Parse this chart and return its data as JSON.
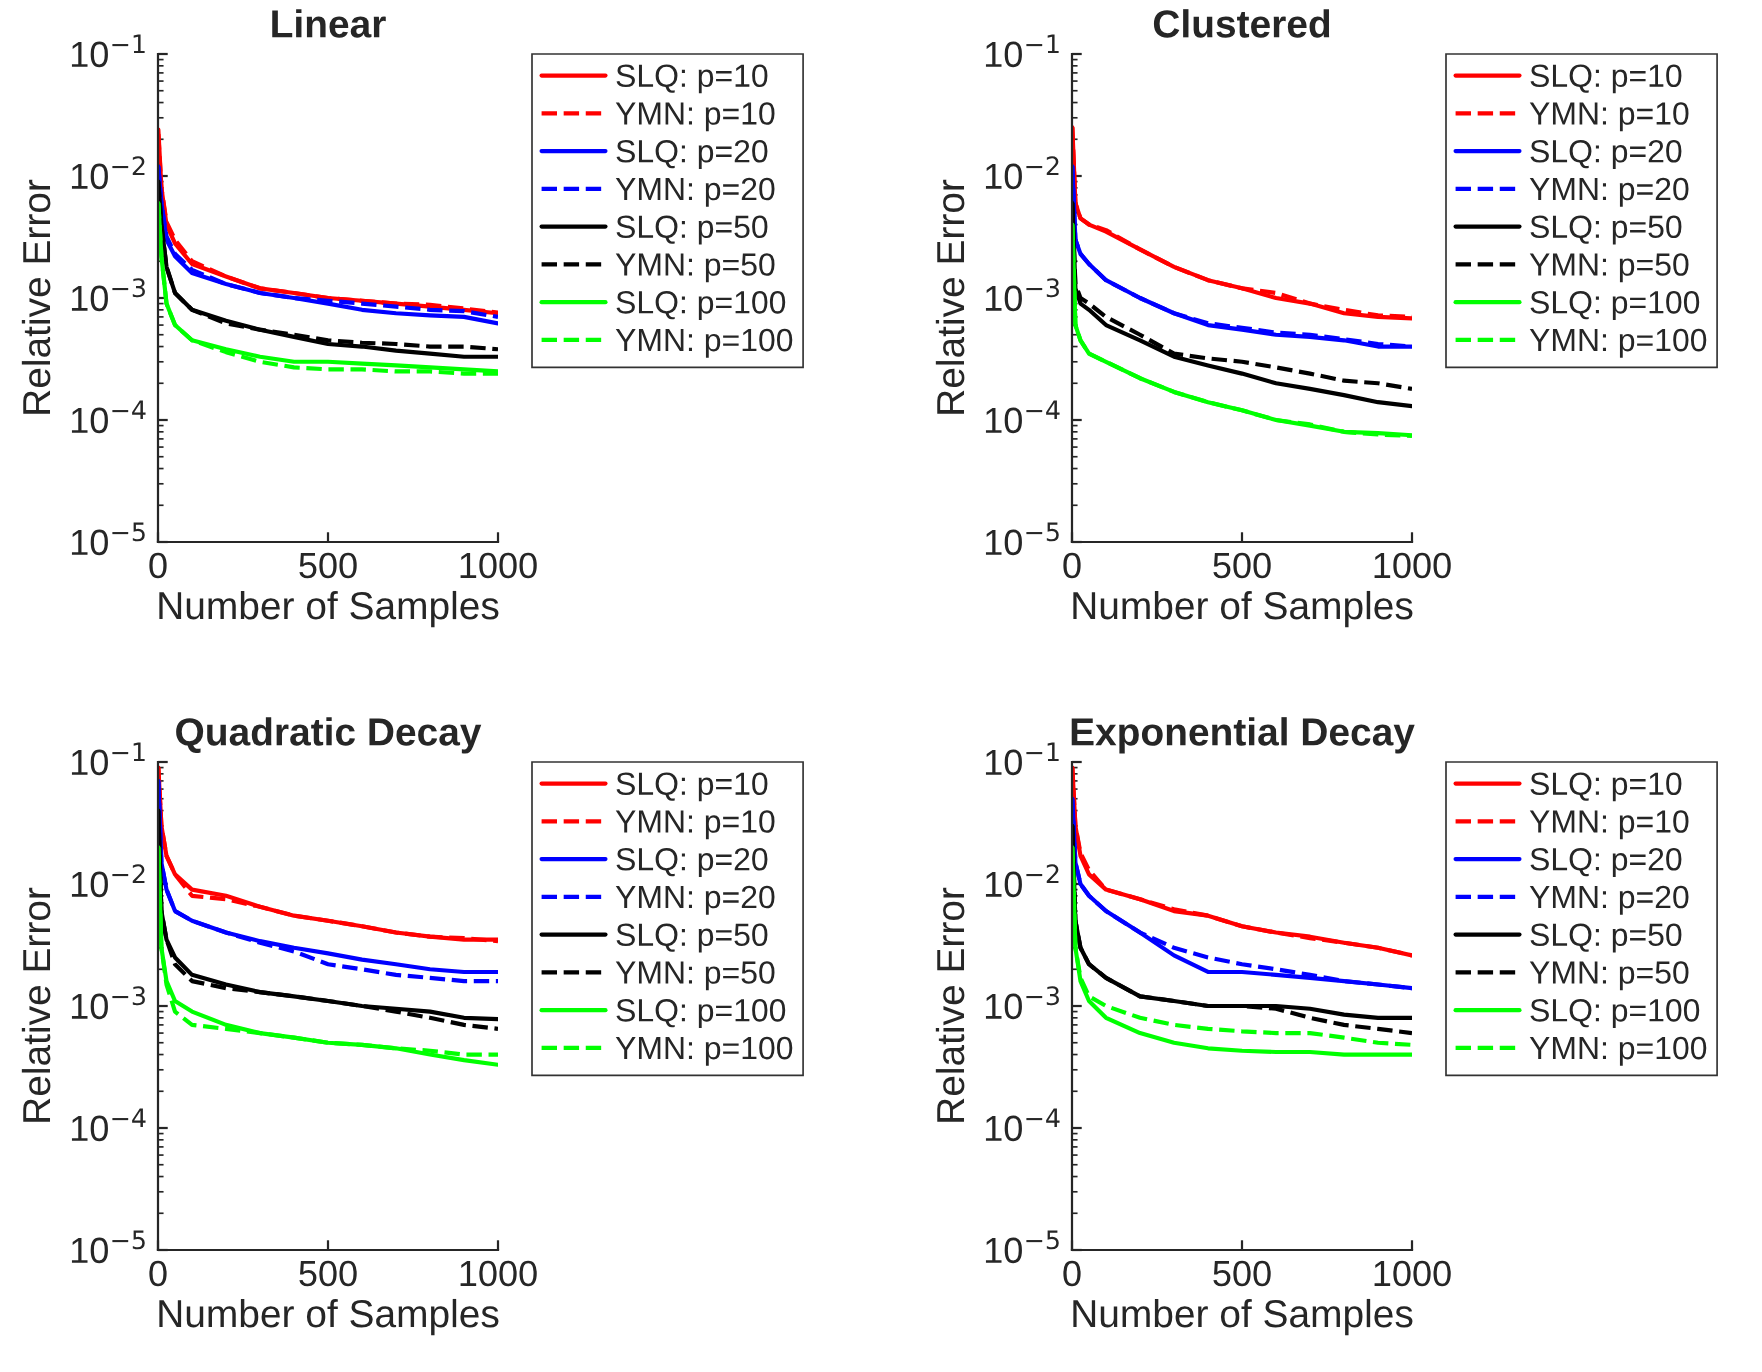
{
  "chart_data": [
    {
      "type": "line",
      "title": "Linear",
      "xlabel": "Number of Samples",
      "ylabel": "Relative Error",
      "log": "y",
      "legend": "right",
      "grid": false,
      "xlim": [
        0,
        1000
      ],
      "xticks": [
        0,
        500,
        1000
      ],
      "ylim": [
        1e-05,
        0.1
      ],
      "yticks": [
        {
          "value": 1e-05,
          "label": "10$^{−5}$"
        },
        {
          "value": 0.0001,
          "label": "10$^{−4}$"
        },
        {
          "value": 0.001,
          "label": "10$^{−3}$"
        },
        {
          "value": 0.01,
          "label": "10$^{−2}$"
        },
        {
          "value": 0.1,
          "label": "10$^{−1}$"
        }
      ],
      "x": [
        1,
        10,
        25,
        50,
        100,
        200,
        300,
        400,
        500,
        600,
        700,
        800,
        900,
        1000
      ],
      "series": [
        {
          "name": "SLQ: p=10",
          "color": "#ff0000",
          "line_style": "solid",
          "values": [
            0.024,
            0.008,
            0.004,
            0.0028,
            0.0019,
            0.0015,
            0.0012,
            0.0011,
            0.001,
            0.00095,
            0.0009,
            0.00085,
            0.0008,
            0.00075
          ]
        },
        {
          "name": "YMN: p=10",
          "color": "#ff0000",
          "line_style": "dashed",
          "values": [
            0.022,
            0.008,
            0.0042,
            0.003,
            0.002,
            0.0015,
            0.0012,
            0.0011,
            0.001,
            0.00095,
            0.0009,
            0.00088,
            0.00082,
            0.00076
          ]
        },
        {
          "name": "SLQ: p=20",
          "color": "#0000ff",
          "line_style": "solid",
          "values": [
            0.012,
            0.006,
            0.003,
            0.0022,
            0.0016,
            0.0013,
            0.0011,
            0.001,
            0.0009,
            0.0008,
            0.00075,
            0.00072,
            0.0007,
            0.00062
          ]
        },
        {
          "name": "YMN: p=20",
          "color": "#0000ff",
          "line_style": "dashed",
          "values": [
            0.012,
            0.006,
            0.0032,
            0.0023,
            0.0017,
            0.0013,
            0.0011,
            0.001,
            0.00095,
            0.0009,
            0.00085,
            0.0008,
            0.00078,
            0.0007
          ]
        },
        {
          "name": "SLQ: p=50",
          "color": "#000000",
          "line_style": "solid",
          "values": [
            0.009,
            0.004,
            0.0018,
            0.0011,
            0.0008,
            0.00065,
            0.00055,
            0.00048,
            0.00042,
            0.0004,
            0.00037,
            0.00035,
            0.00033,
            0.00033
          ]
        },
        {
          "name": "YMN: p=50",
          "color": "#000000",
          "line_style": "dashed",
          "values": [
            0.009,
            0.004,
            0.0018,
            0.0011,
            0.0008,
            0.00062,
            0.00055,
            0.0005,
            0.00045,
            0.00043,
            0.00042,
            0.0004,
            0.0004,
            0.00038
          ]
        },
        {
          "name": "SLQ: p=100",
          "color": "#00ff00",
          "line_style": "solid",
          "values": [
            0.006,
            0.0022,
            0.0009,
            0.0006,
            0.00045,
            0.00038,
            0.00033,
            0.0003,
            0.0003,
            0.00029,
            0.00028,
            0.00027,
            0.00026,
            0.00025
          ]
        },
        {
          "name": "YMN: p=100",
          "color": "#00ff00",
          "line_style": "dashed",
          "values": [
            0.006,
            0.0022,
            0.0009,
            0.0006,
            0.00045,
            0.00036,
            0.0003,
            0.00027,
            0.00026,
            0.00026,
            0.00025,
            0.00025,
            0.00024,
            0.00024
          ]
        }
      ]
    },
    {
      "type": "line",
      "title": "Clustered",
      "xlabel": "Number of Samples",
      "ylabel": "Relative Error",
      "log": "y",
      "legend": "right",
      "grid": false,
      "xlim": [
        0,
        1000
      ],
      "xticks": [
        0,
        500,
        1000
      ],
      "ylim": [
        1e-05,
        0.1
      ],
      "yticks": [
        {
          "value": 1e-05,
          "label": "10$^{−5}$"
        },
        {
          "value": 0.0001,
          "label": "10$^{−4}$"
        },
        {
          "value": 0.001,
          "label": "10$^{−3}$"
        },
        {
          "value": 0.01,
          "label": "10$^{−2}$"
        },
        {
          "value": 0.1,
          "label": "10$^{−1}$"
        }
      ],
      "x": [
        1,
        10,
        25,
        50,
        100,
        200,
        300,
        400,
        500,
        600,
        700,
        800,
        900,
        1000
      ],
      "series": [
        {
          "name": "SLQ: p=10",
          "color": "#ff0000",
          "line_style": "solid",
          "values": [
            0.025,
            0.006,
            0.0045,
            0.004,
            0.0035,
            0.0025,
            0.0018,
            0.0014,
            0.0012,
            0.001,
            0.0009,
            0.00075,
            0.0007,
            0.00068
          ]
        },
        {
          "name": "YMN: p=10",
          "color": "#ff0000",
          "line_style": "dashed",
          "values": [
            0.025,
            0.006,
            0.0045,
            0.004,
            0.0036,
            0.0025,
            0.0018,
            0.0014,
            0.0012,
            0.0011,
            0.0009,
            0.0008,
            0.00072,
            0.0007
          ]
        },
        {
          "name": "SLQ: p=20",
          "color": "#0000ff",
          "line_style": "solid",
          "values": [
            0.012,
            0.003,
            0.0023,
            0.0019,
            0.0014,
            0.001,
            0.00075,
            0.0006,
            0.00055,
            0.0005,
            0.00048,
            0.00045,
            0.0004,
            0.0004
          ]
        },
        {
          "name": "YMN: p=20",
          "color": "#0000ff",
          "line_style": "dashed",
          "values": [
            0.012,
            0.003,
            0.0023,
            0.0019,
            0.0014,
            0.001,
            0.00075,
            0.00062,
            0.00057,
            0.00052,
            0.0005,
            0.00046,
            0.00042,
            0.0004
          ]
        },
        {
          "name": "SLQ: p=50",
          "color": "#000000",
          "line_style": "solid",
          "values": [
            0.006,
            0.0012,
            0.0009,
            0.0008,
            0.0006,
            0.00045,
            0.00033,
            0.00028,
            0.00024,
            0.0002,
            0.00018,
            0.00016,
            0.00014,
            0.00013
          ]
        },
        {
          "name": "YMN: p=50",
          "color": "#000000",
          "line_style": "dashed",
          "values": [
            0.006,
            0.0013,
            0.001,
            0.0009,
            0.0007,
            0.0005,
            0.00035,
            0.00032,
            0.0003,
            0.00027,
            0.00024,
            0.00021,
            0.0002,
            0.00018
          ]
        },
        {
          "name": "SLQ: p=100",
          "color": "#00ff00",
          "line_style": "solid",
          "values": [
            0.004,
            0.0006,
            0.00045,
            0.00035,
            0.0003,
            0.00022,
            0.00017,
            0.00014,
            0.00012,
            0.0001,
            9e-05,
            8e-05,
            7.8e-05,
            7.5e-05
          ]
        },
        {
          "name": "YMN: p=100",
          "color": "#00ff00",
          "line_style": "dashed",
          "values": [
            0.004,
            0.0006,
            0.00045,
            0.00035,
            0.0003,
            0.00022,
            0.00017,
            0.00014,
            0.00012,
            0.0001,
            9.2e-05,
            8e-05,
            7.6e-05,
            7.4e-05
          ]
        }
      ]
    },
    {
      "type": "line",
      "title": "Quadratic Decay",
      "xlabel": "Number of Samples",
      "ylabel": "Relative Error",
      "log": "y",
      "legend": "right",
      "grid": false,
      "xlim": [
        0,
        1000
      ],
      "xticks": [
        0,
        500,
        1000
      ],
      "ylim": [
        1e-05,
        0.1
      ],
      "yticks": [
        {
          "value": 1e-05,
          "label": "10$^{−5}$"
        },
        {
          "value": 0.0001,
          "label": "10$^{−4}$"
        },
        {
          "value": 0.001,
          "label": "10$^{−3}$"
        },
        {
          "value": 0.01,
          "label": "10$^{−2}$"
        },
        {
          "value": 0.1,
          "label": "10$^{−1}$"
        }
      ],
      "x": [
        1,
        10,
        25,
        50,
        100,
        200,
        300,
        400,
        500,
        600,
        700,
        800,
        900,
        1000
      ],
      "series": [
        {
          "name": "SLQ: p=10",
          "color": "#ff0000",
          "line_style": "solid",
          "values": [
            0.09,
            0.03,
            0.017,
            0.012,
            0.009,
            0.008,
            0.0065,
            0.0055,
            0.005,
            0.0045,
            0.004,
            0.0037,
            0.0035,
            0.0035
          ]
        },
        {
          "name": "YMN: p=10",
          "color": "#ff0000",
          "line_style": "dashed",
          "values": [
            0.09,
            0.03,
            0.017,
            0.012,
            0.008,
            0.0075,
            0.0065,
            0.0055,
            0.005,
            0.0045,
            0.004,
            0.0037,
            0.0036,
            0.0034
          ]
        },
        {
          "name": "SLQ: p=20",
          "color": "#0000ff",
          "line_style": "solid",
          "values": [
            0.07,
            0.015,
            0.009,
            0.006,
            0.005,
            0.004,
            0.0034,
            0.003,
            0.0027,
            0.0024,
            0.0022,
            0.002,
            0.0019,
            0.0019
          ]
        },
        {
          "name": "YMN: p=20",
          "color": "#0000ff",
          "line_style": "dashed",
          "values": [
            0.07,
            0.015,
            0.009,
            0.006,
            0.005,
            0.004,
            0.0033,
            0.0028,
            0.0022,
            0.002,
            0.0018,
            0.0017,
            0.0016,
            0.0016
          ]
        },
        {
          "name": "SLQ: p=50",
          "color": "#000000",
          "line_style": "solid",
          "values": [
            0.04,
            0.006,
            0.0035,
            0.0025,
            0.0018,
            0.0015,
            0.0013,
            0.0012,
            0.0011,
            0.001,
            0.00095,
            0.0009,
            0.0008,
            0.00078
          ]
        },
        {
          "name": "YMN: p=50",
          "color": "#000000",
          "line_style": "dashed",
          "values": [
            0.04,
            0.006,
            0.0035,
            0.0022,
            0.0016,
            0.0014,
            0.0013,
            0.0012,
            0.0011,
            0.001,
            0.0009,
            0.0008,
            0.0007,
            0.00065
          ]
        },
        {
          "name": "SLQ: p=100",
          "color": "#00ff00",
          "line_style": "solid",
          "values": [
            0.02,
            0.003,
            0.0016,
            0.0011,
            0.0009,
            0.0007,
            0.0006,
            0.00055,
            0.0005,
            0.00048,
            0.00045,
            0.0004,
            0.00036,
            0.00033
          ]
        },
        {
          "name": "YMN: p=100",
          "color": "#00ff00",
          "line_style": "dashed",
          "values": [
            0.02,
            0.003,
            0.0015,
            0.0009,
            0.0007,
            0.00065,
            0.0006,
            0.00055,
            0.0005,
            0.00048,
            0.00045,
            0.00043,
            0.0004,
            0.0004
          ]
        }
      ]
    },
    {
      "type": "line",
      "title": "Exponential Decay",
      "xlabel": "Number of Samples",
      "ylabel": "Relative Error",
      "log": "y",
      "legend": "right",
      "grid": false,
      "xlim": [
        0,
        1000
      ],
      "xticks": [
        0,
        500,
        1000
      ],
      "ylim": [
        1e-05,
        0.1
      ],
      "yticks": [
        {
          "value": 1e-05,
          "label": "10$^{−5}$"
        },
        {
          "value": 0.0001,
          "label": "10$^{−4}$"
        },
        {
          "value": 0.001,
          "label": "10$^{−3}$"
        },
        {
          "value": 0.01,
          "label": "10$^{−2}$"
        },
        {
          "value": 0.1,
          "label": "10$^{−1}$"
        }
      ],
      "x": [
        1,
        10,
        25,
        50,
        100,
        200,
        300,
        400,
        500,
        600,
        700,
        800,
        900,
        1000
      ],
      "series": [
        {
          "name": "SLQ: p=10",
          "color": "#ff0000",
          "line_style": "solid",
          "values": [
            0.09,
            0.03,
            0.017,
            0.012,
            0.009,
            0.0075,
            0.006,
            0.0055,
            0.0045,
            0.004,
            0.0037,
            0.0033,
            0.003,
            0.0026
          ]
        },
        {
          "name": "YMN: p=10",
          "color": "#ff0000",
          "line_style": "dashed",
          "values": [
            0.09,
            0.03,
            0.018,
            0.013,
            0.009,
            0.0075,
            0.0062,
            0.0055,
            0.0045,
            0.004,
            0.0036,
            0.0033,
            0.003,
            0.0026
          ]
        },
        {
          "name": "SLQ: p=20",
          "color": "#0000ff",
          "line_style": "solid",
          "values": [
            0.05,
            0.015,
            0.01,
            0.008,
            0.006,
            0.004,
            0.0026,
            0.0019,
            0.0019,
            0.0018,
            0.0017,
            0.0016,
            0.0015,
            0.0014
          ]
        },
        {
          "name": "YMN: p=20",
          "color": "#0000ff",
          "line_style": "dashed",
          "values": [
            0.05,
            0.015,
            0.01,
            0.008,
            0.006,
            0.004,
            0.003,
            0.0025,
            0.0022,
            0.002,
            0.0018,
            0.0016,
            0.0015,
            0.0014
          ]
        },
        {
          "name": "SLQ: p=50",
          "color": "#000000",
          "line_style": "solid",
          "values": [
            0.03,
            0.005,
            0.003,
            0.0022,
            0.0017,
            0.0012,
            0.0011,
            0.001,
            0.001,
            0.001,
            0.00095,
            0.00085,
            0.0008,
            0.0008
          ]
        },
        {
          "name": "YMN: p=50",
          "color": "#000000",
          "line_style": "dashed",
          "values": [
            0.03,
            0.005,
            0.003,
            0.0022,
            0.0017,
            0.0012,
            0.0011,
            0.001,
            0.001,
            0.00095,
            0.0008,
            0.0007,
            0.00065,
            0.0006
          ]
        },
        {
          "name": "SLQ: p=100",
          "color": "#00ff00",
          "line_style": "solid",
          "values": [
            0.02,
            0.003,
            0.0016,
            0.0011,
            0.0008,
            0.0006,
            0.0005,
            0.00045,
            0.00043,
            0.00042,
            0.00042,
            0.0004,
            0.0004,
            0.0004
          ]
        },
        {
          "name": "YMN: p=100",
          "color": "#00ff00",
          "line_style": "dashed",
          "values": [
            0.02,
            0.003,
            0.0017,
            0.0012,
            0.001,
            0.0008,
            0.0007,
            0.00065,
            0.00062,
            0.0006,
            0.0006,
            0.00055,
            0.0005,
            0.00048
          ]
        }
      ]
    }
  ]
}
